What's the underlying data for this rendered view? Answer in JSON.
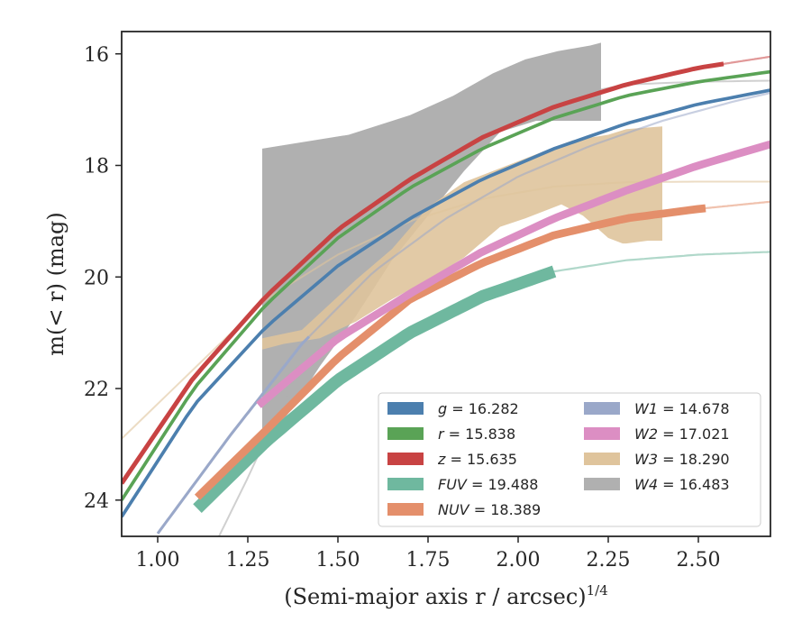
{
  "chart_data": {
    "type": "line",
    "xlabel": "(Semi-major axis r / arcsec)",
    "xlabel_sup": "1/4",
    "ylabel": "m(< r) (mag)",
    "xlim": [
      0.9,
      2.7
    ],
    "ylim": [
      24.65,
      15.6
    ],
    "y_inverted": true,
    "x_ticks": [
      1.0,
      1.25,
      1.5,
      1.75,
      2.0,
      2.25,
      2.5
    ],
    "x_tick_labels": [
      "1.00",
      "1.25",
      "1.50",
      "1.75",
      "2.00",
      "2.25",
      "2.50"
    ],
    "y_ticks": [
      16,
      18,
      20,
      22,
      24
    ],
    "y_tick_labels": [
      "16",
      "18",
      "20",
      "22",
      "24"
    ],
    "grid": false,
    "legend_position": "lower-right",
    "legend_columns": 2,
    "series": [
      {
        "name": "g",
        "legend": "g = 16.282",
        "color": "#4c7fae",
        "kind": "curve",
        "x": [
          0.9,
          1.1,
          1.3,
          1.5,
          1.7,
          1.9,
          2.1,
          2.3,
          2.5,
          2.7
        ],
        "y": [
          24.3,
          22.3,
          20.9,
          19.8,
          18.95,
          18.25,
          17.7,
          17.25,
          16.9,
          16.65
        ],
        "band": 0.06,
        "solid_until": 2.7
      },
      {
        "name": "r",
        "legend": "r = 15.838",
        "color": "#5aa356",
        "kind": "curve",
        "x": [
          0.9,
          1.1,
          1.3,
          1.5,
          1.7,
          1.9,
          2.1,
          2.3,
          2.5,
          2.7
        ],
        "y": [
          24.0,
          22.0,
          20.5,
          19.3,
          18.4,
          17.7,
          17.15,
          16.75,
          16.5,
          16.32
        ],
        "band": 0.06,
        "solid_until": 2.7
      },
      {
        "name": "z",
        "legend": "z = 15.635",
        "color": "#c84343",
        "kind": "curve",
        "x": [
          0.9,
          1.1,
          1.3,
          1.5,
          1.7,
          1.9,
          2.1,
          2.3,
          2.5,
          2.7
        ],
        "y": [
          23.7,
          21.8,
          20.35,
          19.15,
          18.25,
          17.5,
          16.95,
          16.55,
          16.25,
          16.05
        ],
        "band": 0.08,
        "solid_until": 2.57
      },
      {
        "name": "FUV",
        "legend": "FUV = 19.488",
        "color": "#6fb89f",
        "kind": "curve",
        "x": [
          1.11,
          1.3,
          1.5,
          1.7,
          1.9,
          2.1,
          2.3,
          2.5,
          2.7
        ],
        "y": [
          24.15,
          22.95,
          21.85,
          21.0,
          20.35,
          19.9,
          19.7,
          19.6,
          19.55
        ],
        "band": 0.22,
        "solid_until": 2.1
      },
      {
        "name": "NUV",
        "legend": "NUV = 18.389",
        "color": "#e48f6b",
        "kind": "curve",
        "x": [
          1.11,
          1.3,
          1.5,
          1.7,
          1.9,
          2.1,
          2.3,
          2.5,
          2.7
        ],
        "y": [
          23.95,
          22.75,
          21.45,
          20.4,
          19.75,
          19.25,
          18.95,
          18.78,
          18.65
        ],
        "band": 0.14,
        "solid_until": 2.52
      },
      {
        "name": "W1",
        "legend": "W1 = 14.678",
        "color": "#9aa8c9",
        "kind": "curve",
        "x": [
          1.0,
          1.2,
          1.4,
          1.6,
          1.8,
          2.0,
          2.2,
          2.4,
          2.6,
          2.7
        ],
        "y": [
          24.6,
          22.85,
          21.2,
          19.9,
          18.95,
          18.2,
          17.65,
          17.2,
          16.85,
          16.7
        ],
        "band": 0.05,
        "solid_until": 1.42
      },
      {
        "name": "W2",
        "legend": "W2 = 17.021",
        "color": "#dc8ec3",
        "kind": "curve",
        "x": [
          1.28,
          1.5,
          1.7,
          1.9,
          2.1,
          2.3,
          2.5,
          2.7
        ],
        "y": [
          22.3,
          21.1,
          20.3,
          19.55,
          18.95,
          18.45,
          18.0,
          17.62
        ],
        "band": 0.14,
        "solid_until": 2.7
      },
      {
        "name": "W3",
        "legend": "W3 = 18.290",
        "color": "#dfc49c",
        "kind": "band_upper",
        "x": [
          1.29,
          1.4,
          1.55,
          1.65,
          1.75,
          1.85,
          1.95,
          2.05,
          2.15,
          2.25,
          2.3,
          2.4
        ],
        "y": [
          21.1,
          20.95,
          20.05,
          19.5,
          18.75,
          18.3,
          18.05,
          17.8,
          17.55,
          17.45,
          17.35,
          17.3
        ]
      },
      {
        "name": "W4",
        "legend": "W4 = 16.483",
        "color": "#b0b0b0",
        "kind": "band_upper",
        "x": [
          1.29,
          1.53,
          1.7,
          1.82,
          1.93,
          2.02,
          2.11,
          2.2,
          2.23
        ],
        "y": [
          17.7,
          17.45,
          17.1,
          16.75,
          16.35,
          16.1,
          15.95,
          15.85,
          15.8
        ]
      }
    ],
    "w3_band": {
      "upper_x": [
        1.29,
        1.4,
        1.55,
        1.65,
        1.75,
        1.85,
        1.95,
        2.05,
        2.15,
        2.25,
        2.3,
        2.4
      ],
      "upper_y": [
        21.1,
        20.95,
        20.05,
        19.5,
        18.75,
        18.3,
        18.05,
        17.8,
        17.55,
        17.45,
        17.35,
        17.3
      ],
      "lower_x": [
        2.4,
        2.36,
        2.3,
        2.29,
        2.25,
        2.18,
        2.12,
        2.02,
        1.95,
        1.85,
        1.75,
        1.65,
        1.55,
        1.45,
        1.35,
        1.29
      ],
      "lower_y": [
        19.35,
        19.35,
        19.4,
        19.4,
        19.3,
        18.9,
        18.7,
        18.95,
        19.1,
        19.65,
        20.05,
        20.4,
        20.8,
        21.1,
        21.2,
        21.3
      ],
      "model_x": [
        0.9,
        1.1,
        1.3,
        1.5,
        1.7,
        1.9,
        2.1,
        2.3,
        2.5,
        2.7
      ],
      "model_y": [
        22.9,
        21.65,
        20.4,
        19.6,
        19.0,
        18.6,
        18.38,
        18.3,
        18.29,
        18.29
      ]
    },
    "w4_band": {
      "upper_x": [
        1.29,
        1.53,
        1.7,
        1.82,
        1.93,
        2.02,
        2.11,
        2.2,
        2.23
      ],
      "upper_y": [
        17.7,
        17.45,
        17.1,
        16.75,
        16.35,
        16.1,
        15.95,
        15.85,
        15.8
      ],
      "lower_x": [
        2.23,
        2.05,
        1.95,
        1.85,
        1.75,
        1.65,
        1.55,
        1.45,
        1.38,
        1.32,
        1.29
      ],
      "lower_y": [
        17.2,
        17.2,
        17.4,
        18.1,
        18.9,
        19.7,
        20.7,
        21.6,
        22.3,
        22.8,
        23.0
      ],
      "model_x": [
        1.17,
        1.25,
        1.35,
        1.5,
        1.65,
        1.8,
        1.95,
        2.1,
        2.3,
        2.5,
        2.7
      ],
      "model_y": [
        24.65,
        23.6,
        22.2,
        20.6,
        19.2,
        18.1,
        17.3,
        16.8,
        16.55,
        16.5,
        16.48
      ]
    }
  }
}
